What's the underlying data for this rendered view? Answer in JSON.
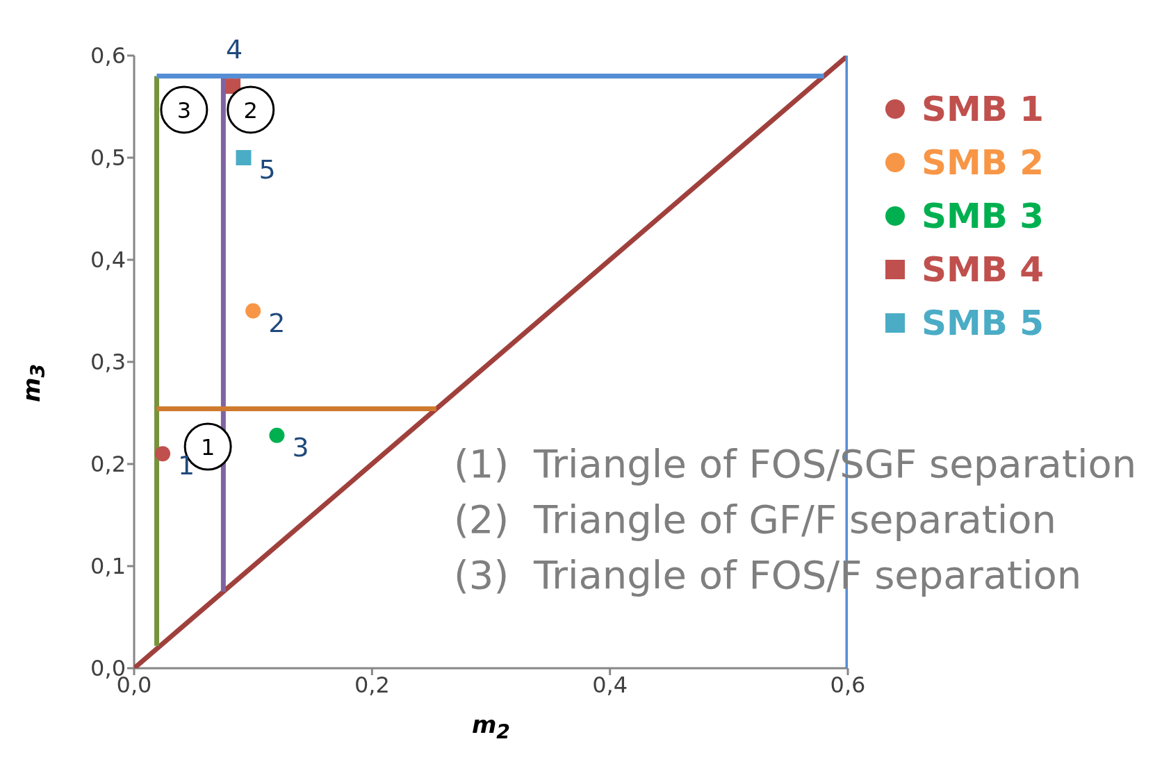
{
  "chart_data": {
    "type": "scatter",
    "xlabel": "m$_{2}$",
    "ylabel": "m$_{3}$",
    "xlim": [
      0,
      0.6
    ],
    "ylim": [
      0,
      0.6
    ],
    "xticks": [
      {
        "value": 0,
        "label": "0,0"
      },
      {
        "value": 0.2,
        "label": "0,2"
      },
      {
        "value": 0.4,
        "label": "0,4"
      },
      {
        "value": 0.6,
        "label": "0,6"
      }
    ],
    "yticks": [
      {
        "value": 0,
        "label": "0,0"
      },
      {
        "value": 0.1,
        "label": "0,1"
      },
      {
        "value": 0.2,
        "label": "0,2"
      },
      {
        "value": 0.3,
        "label": "0,3"
      },
      {
        "value": 0.4,
        "label": "0,4"
      },
      {
        "value": 0.5,
        "label": "0,5"
      },
      {
        "value": 0.6,
        "label": "0,6"
      }
    ],
    "grid": false,
    "legend": "right",
    "series": [
      {
        "type": "line",
        "color": "#a0403c",
        "marker": "none",
        "x": [
          0,
          0.6
        ],
        "values": [
          0,
          0.6
        ]
      },
      {
        "type": "line",
        "color": "#77933c",
        "marker": "none",
        "x": [
          0.019,
          0.019
        ],
        "values": [
          0.022,
          0.58
        ]
      },
      {
        "type": "line",
        "color": "#8064a2",
        "marker": "none",
        "x": [
          0.075,
          0.075
        ],
        "values": [
          0.075,
          0.58
        ]
      },
      {
        "type": "line",
        "color": "#558ed5",
        "marker": "none",
        "x": [
          0.019,
          0.58
        ],
        "values": [
          0.58,
          0.58
        ]
      },
      {
        "type": "line",
        "color": "#558ed5",
        "marker": "none",
        "x": [
          0.6,
          0.6
        ],
        "values": [
          0,
          0.6
        ]
      },
      {
        "type": "line",
        "color": "#d07a30",
        "marker": "none",
        "x": [
          0.019,
          0.254
        ],
        "values": [
          0.254,
          0.254
        ]
      },
      {
        "name": "SMB 1",
        "marker": "circle",
        "color": "#c0504d",
        "x": [
          0.024
        ],
        "values": [
          0.21
        ]
      },
      {
        "name": "SMB 2",
        "marker": "circle",
        "color": "#f79646",
        "x": [
          0.1
        ],
        "values": [
          0.35
        ]
      },
      {
        "name": "SMB 3",
        "marker": "circle",
        "color": "#00b050",
        "x": [
          0.12
        ],
        "values": [
          0.228
        ]
      },
      {
        "name": "SMB 4",
        "marker": "square",
        "color": "#c0504d",
        "x": [
          0.083
        ],
        "values": [
          0.57
        ]
      },
      {
        "name": "SMB 5",
        "marker": "square",
        "color": "#4bacc6",
        "x": [
          0.092
        ],
        "values": [
          0.5
        ]
      }
    ],
    "annotations": [
      {
        "text": "1",
        "x": 0.024,
        "y": 0.21
      },
      {
        "text": "2",
        "x": 0.1,
        "y": 0.35
      },
      {
        "text": "3",
        "x": 0.12,
        "y": 0.228
      },
      {
        "text": "4",
        "x": 0.083,
        "y": 0.57
      },
      {
        "text": "5",
        "x": 0.092,
        "y": 0.5
      },
      "1",
      "2",
      "3",
      "(1)  Triangle of FOS/SGF separation",
      "(2)  Triangle of GF/F separation",
      "(3)  Triangle of FOS/F separation"
    ]
  }
}
